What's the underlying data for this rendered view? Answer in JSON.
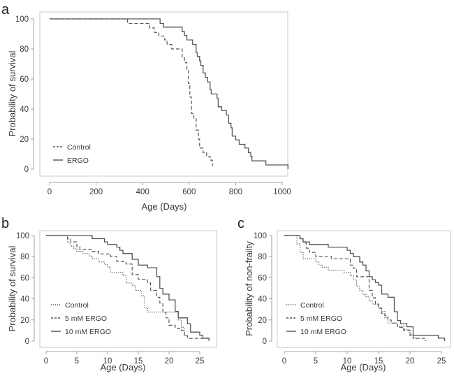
{
  "chart_data": [
    {
      "panel": "a",
      "type": "line",
      "step": true,
      "title": "",
      "xlabel": "Age (Days)",
      "ylabel": "Probability of survival",
      "xlim": [
        0,
        1030
      ],
      "ylim": [
        0,
        100
      ],
      "xticks": [
        0,
        200,
        400,
        600,
        800,
        1000
      ],
      "yticks": [
        0,
        20,
        40,
        60,
        80,
        100
      ],
      "grid": false,
      "legend_position": "bottom-left",
      "series": [
        {
          "name": "Control",
          "style": "dashed",
          "x": [
            0,
            335,
            430,
            450,
            470,
            495,
            505,
            525,
            570,
            580,
            590,
            597,
            603,
            610,
            620,
            630,
            640,
            645,
            660,
            675,
            690,
            700
          ],
          "y": [
            100,
            97,
            94,
            91,
            88.5,
            86,
            83,
            80,
            74,
            71,
            66,
            57,
            48,
            37,
            34,
            26,
            20,
            14,
            11,
            8.5,
            6,
            2
          ]
        },
        {
          "name": "ERGO",
          "style": "solid",
          "x": [
            0,
            475,
            490,
            570,
            580,
            590,
            615,
            630,
            635,
            645,
            650,
            660,
            670,
            680,
            690,
            695,
            705,
            720,
            725,
            740,
            760,
            770,
            780,
            785,
            800,
            815,
            840,
            855,
            865,
            870,
            880,
            930,
            1025
          ],
          "y": [
            100,
            97,
            94.5,
            91.5,
            89,
            86,
            83,
            77.5,
            75,
            72,
            69,
            64,
            61,
            58,
            53,
            50,
            50,
            47,
            41.5,
            39,
            36,
            30.5,
            27.5,
            22,
            19.5,
            16.5,
            14,
            11,
            8.5,
            5.5,
            5.5,
            2.8,
            0
          ]
        }
      ]
    },
    {
      "panel": "b",
      "type": "line",
      "step": true,
      "title": "",
      "xlabel": "Age (Days)",
      "ylabel": "Probability of survival",
      "xlim": [
        0,
        26.5
      ],
      "ylim": [
        0,
        100
      ],
      "xticks": [
        0,
        5,
        10,
        15,
        20,
        25
      ],
      "yticks": [
        0,
        20,
        40,
        60,
        80,
        100
      ],
      "grid": false,
      "legend_position": "bottom-left",
      "series": [
        {
          "name": "Control",
          "style": "dotted",
          "x": [
            0,
            3.5,
            4,
            4.5,
            5,
            6,
            7,
            7.5,
            8.5,
            9.5,
            10,
            10.5,
            12.5,
            13,
            14,
            14.5,
            15.5,
            16,
            16.5,
            20.5,
            21.5,
            22,
            22.5,
            23
          ],
          "y": [
            100,
            93,
            90,
            87.5,
            85,
            83,
            80.5,
            78,
            75,
            72.5,
            70,
            65,
            62,
            55,
            52.5,
            48,
            43,
            32,
            27.5,
            27.5,
            20,
            13,
            5,
            2.5
          ]
        },
        {
          "name": "5 mM ERGO",
          "style": "dashed",
          "x": [
            0,
            3.5,
            4,
            5,
            5.5,
            7.5,
            8.5,
            10.5,
            11.5,
            13,
            14,
            15,
            16.5,
            17,
            18,
            18.5,
            19,
            19.5,
            20,
            21,
            22,
            22.5,
            23,
            26.5
          ],
          "y": [
            100,
            97,
            94,
            89.5,
            87,
            85,
            82.5,
            80,
            75.5,
            73,
            63,
            58.5,
            55,
            48,
            41.5,
            36,
            27,
            22,
            15,
            12,
            10,
            5,
            2.5,
            0
          ]
        },
        {
          "name": "10 mM ERGO",
          "style": "solid",
          "x": [
            0,
            7.5,
            9.5,
            10,
            11.5,
            12,
            12.5,
            14,
            15,
            16.5,
            18,
            18.5,
            19,
            20,
            21,
            21.5,
            23,
            23.5,
            25,
            25.5,
            26,
            26.5
          ],
          "y": [
            100,
            97,
            94,
            91.5,
            89,
            86,
            83,
            77.5,
            72,
            69.5,
            61,
            50,
            44.5,
            39,
            28,
            22,
            16.5,
            8.5,
            5.5,
            2.8,
            2.8,
            0
          ]
        }
      ]
    },
    {
      "panel": "c",
      "type": "line",
      "step": true,
      "title": "",
      "xlabel": "Age (Days)",
      "ylabel": "Probability of non-frailty",
      "xlim": [
        0,
        25.5
      ],
      "ylim": [
        0,
        100
      ],
      "xticks": [
        0,
        5,
        10,
        15,
        20,
        25
      ],
      "yticks": [
        0,
        20,
        40,
        60,
        80,
        100
      ],
      "grid": false,
      "legend_position": "bottom-left",
      "series": [
        {
          "name": "Control",
          "style": "dotted",
          "x": [
            0,
            2,
            2.5,
            3,
            5,
            5.5,
            6,
            7,
            9.5,
            10.5,
            11,
            11.5,
            12,
            12.5,
            13,
            13.5,
            14,
            15,
            15.5,
            16,
            16.5,
            17,
            18,
            19,
            20,
            20.5,
            21
          ],
          "y": [
            100,
            92,
            84,
            78,
            75,
            72,
            70,
            67,
            65,
            62,
            58,
            52,
            48,
            44,
            42,
            38,
            35,
            32,
            28,
            22,
            17,
            17,
            14,
            11,
            6,
            3,
            1
          ]
        },
        {
          "name": "5 mM ERGO",
          "style": "dashed",
          "x": [
            0,
            2.5,
            3,
            3.5,
            4,
            5,
            7.5,
            10.5,
            11,
            11.5,
            12,
            13.5,
            14,
            14.5,
            15,
            15.5,
            16,
            16.5,
            17,
            18,
            19,
            20,
            20.5,
            22.5
          ],
          "y": [
            100,
            97,
            93,
            88,
            84,
            80,
            78,
            72,
            69,
            61,
            61,
            48,
            41,
            35,
            31,
            26,
            24,
            20,
            17,
            13,
            10,
            5,
            2.5,
            0
          ]
        },
        {
          "name": "10 mM ERGO",
          "style": "solid",
          "x": [
            0,
            2.5,
            3,
            4,
            7,
            10,
            10.5,
            11,
            12,
            12.5,
            13,
            13.5,
            14,
            14.5,
            15,
            15.5,
            16.5,
            17.5,
            18,
            18.5,
            19.5,
            20.5,
            24.5,
            25.5
          ],
          "y": [
            100,
            97,
            94,
            91.5,
            89,
            86,
            83,
            80,
            75,
            72,
            66.5,
            61,
            58,
            55.5,
            53,
            44.5,
            41.5,
            27.8,
            19.5,
            16.5,
            13.5,
            5.5,
            2.8,
            0
          ]
        }
      ]
    }
  ],
  "panels": [
    {
      "label": "a",
      "xlabel": "Age (Days)",
      "ylabel": "Probability of survival",
      "legend": [
        "Control",
        "ERGO"
      ]
    },
    {
      "label": "b",
      "xlabel": "Age (Days)",
      "ylabel": "Probability of survival",
      "legend": [
        "Control",
        "5 mM ERGO",
        "10 mM ERGO"
      ]
    },
    {
      "label": "c",
      "xlabel": "Age (Days)",
      "ylabel": "Probability of non-frailty",
      "legend": [
        "Control",
        "5 mM ERGO",
        "10 mM ERGO"
      ]
    }
  ],
  "colors": {
    "line": "#555555",
    "frame": "#c8c8c8",
    "text": "#3a3a3a"
  }
}
